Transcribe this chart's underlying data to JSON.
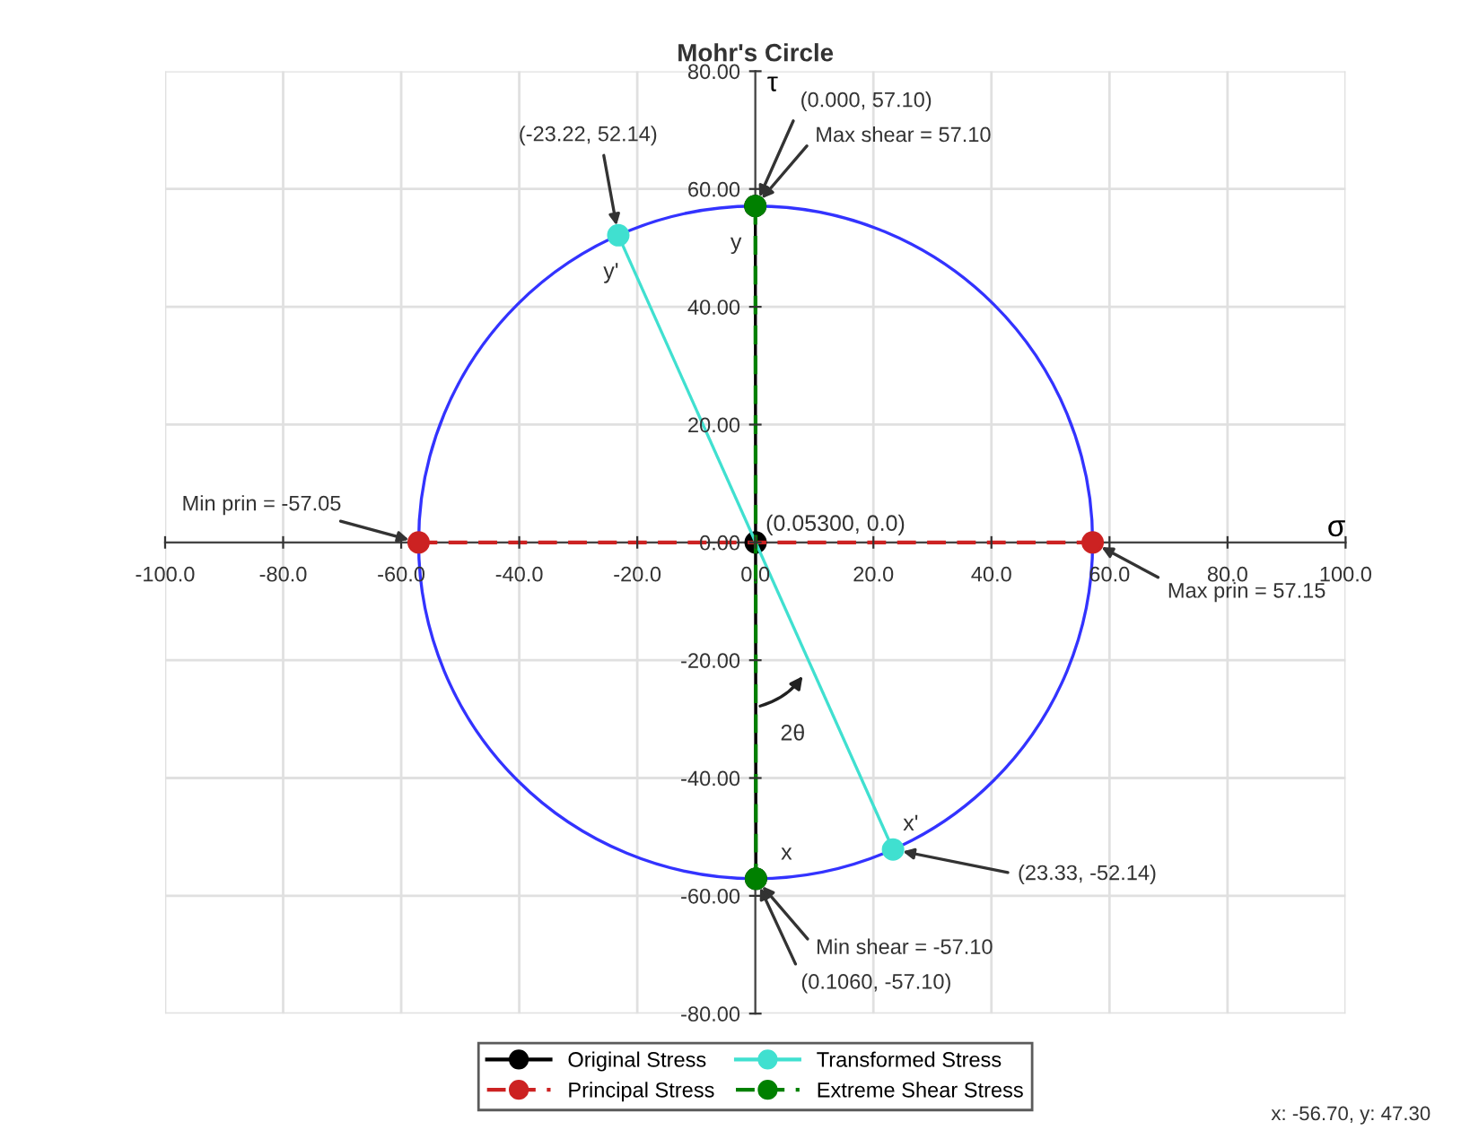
{
  "chart_data": {
    "type": "line",
    "title": "Mohr's Circle",
    "xlabel": "σ",
    "ylabel": "τ",
    "xlim": [
      -100,
      100
    ],
    "ylim": [
      -80,
      80
    ],
    "xticks": [
      {
        "value": -100,
        "label": "-100.0"
      },
      {
        "value": -80,
        "label": "-80.0"
      },
      {
        "value": -60,
        "label": "-60.0"
      },
      {
        "value": -40,
        "label": "-40.0"
      },
      {
        "value": -20,
        "label": "-20.0"
      },
      {
        "value": 0,
        "label": "0.0"
      },
      {
        "value": 20,
        "label": "20.0"
      },
      {
        "value": 40,
        "label": "40.0"
      },
      {
        "value": 60,
        "label": "60.0"
      },
      {
        "value": 80,
        "label": "80.0"
      },
      {
        "value": 100,
        "label": "100.0"
      }
    ],
    "yticks": [
      {
        "value": -80,
        "label": "-80.00"
      },
      {
        "value": -60,
        "label": "-60.00"
      },
      {
        "value": -40,
        "label": "-40.00"
      },
      {
        "value": -20,
        "label": "-20.00"
      },
      {
        "value": 0,
        "label": "0.00"
      },
      {
        "value": 20,
        "label": "20.00"
      },
      {
        "value": 40,
        "label": "40.00"
      },
      {
        "value": 60,
        "label": "60.00"
      },
      {
        "value": 80,
        "label": "80.00"
      }
    ],
    "grid": true,
    "legend": "bottom",
    "series": [
      {
        "name": "Original Stress",
        "color": "#000000",
        "marker": "circle",
        "line_style": "solid",
        "x": [
          0.106,
          0.053,
          0.0
        ],
        "values": [
          -57.1,
          0,
          57.1
        ]
      },
      {
        "name": "Principal Stress",
        "color": "#cc2222",
        "marker": "circle",
        "line_style": "dashed",
        "x": [
          -57.05,
          57.15
        ],
        "values": [
          0,
          0
        ]
      },
      {
        "name": "Transformed Stress",
        "color": "#40e0d0",
        "marker": "circle",
        "line_style": "solid",
        "x": [
          -23.22,
          23.33
        ],
        "values": [
          52.14,
          -52.14
        ]
      },
      {
        "name": "Extreme Shear Stress",
        "color": "#008000",
        "marker": "circle",
        "line_style": "dashed",
        "x": [
          0.0,
          0.106
        ],
        "values": [
          57.1,
          -57.1
        ]
      }
    ],
    "annotations": [
      {
        "text": "(-23.22, 52.14)",
        "x": -23.22,
        "y": 52.14
      },
      {
        "text": "(0.000, 57.10)",
        "x": 0.0,
        "y": 57.1
      },
      {
        "text": "Max shear = 57.10",
        "x": 0.0,
        "y": 57.1
      },
      {
        "text": "y",
        "x": 0.0,
        "y": 57.1
      },
      {
        "text": "y'",
        "x": -23.22,
        "y": 52.14
      },
      {
        "text": "(0.05300, 0.0)",
        "x": 0.053,
        "y": 0
      },
      {
        "text": "Min prin = -57.05",
        "x": -57.05,
        "y": 0
      },
      {
        "text": "Max prin = 57.15",
        "x": 57.15,
        "y": 0
      },
      {
        "text": "2θ",
        "x": 0.0,
        "y": -25
      },
      {
        "text": "x",
        "x": 0.106,
        "y": -57.1
      },
      {
        "text": "x'",
        "x": 23.33,
        "y": -52.14
      },
      {
        "text": "(23.33, -52.14)",
        "x": 23.33,
        "y": -52.14
      },
      {
        "text": "Min shear = -57.10",
        "x": 0.106,
        "y": -57.1
      },
      {
        "text": "(0.1060, -57.10)",
        "x": 0.106,
        "y": -57.1
      },
      "x: -56.70, y: 47.30"
    ]
  }
}
